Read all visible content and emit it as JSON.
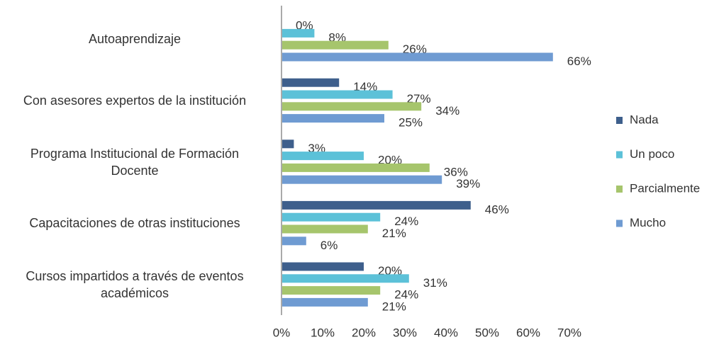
{
  "chart_data": {
    "type": "hbar",
    "categories": [
      "Autoaprendizaje",
      "Con asesores expertos de la institución",
      "Programa Institucional de Formación\nDocente",
      "Capacitaciones de otras instituciones",
      "Cursos impartidos a través de eventos\nacadémicos"
    ],
    "series": [
      {
        "name": "Nada",
        "color": "#3e5f8c",
        "values": [
          0,
          14,
          3,
          46,
          20
        ],
        "value_labels": [
          "0%",
          "14%",
          "3%",
          "46%",
          "20%"
        ]
      },
      {
        "name": "Un poco",
        "color": "#5cc1d8",
        "values": [
          8,
          27,
          20,
          24,
          31
        ],
        "value_labels": [
          "8%",
          "27%",
          "20%",
          "24%",
          "31%"
        ]
      },
      {
        "name": "Parcialmente",
        "color": "#a6c56c",
        "values": [
          26,
          34,
          36,
          21,
          24
        ],
        "value_labels": [
          "26%",
          "34%",
          "36%",
          "21%",
          "24%"
        ]
      },
      {
        "name": "Mucho",
        "color": "#6f9bd2",
        "values": [
          66,
          25,
          39,
          6,
          21
        ],
        "value_labels": [
          "66%",
          "25%",
          "39%",
          "6%",
          "21%"
        ]
      }
    ],
    "xlim": [
      0,
      70
    ],
    "xticks": [
      {
        "value": 0,
        "label": "0%"
      },
      {
        "value": 10,
        "label": "10%"
      },
      {
        "value": 20,
        "label": "20%"
      },
      {
        "value": 30,
        "label": "30%"
      },
      {
        "value": 40,
        "label": "40%"
      },
      {
        "value": 50,
        "label": "50%"
      },
      {
        "value": 60,
        "label": "60%"
      },
      {
        "value": 70,
        "label": "70%"
      }
    ],
    "legend": "right"
  }
}
